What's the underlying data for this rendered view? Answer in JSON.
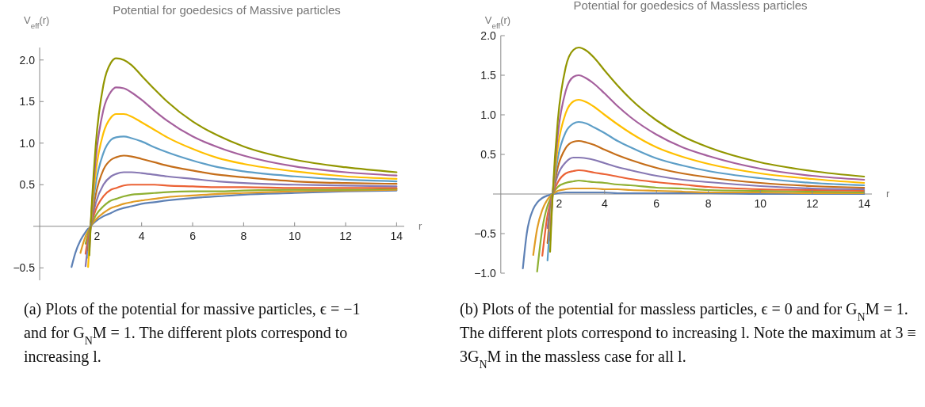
{
  "chart_data": [
    {
      "type": "line",
      "title": "Potential for goedesics of Massive particles",
      "xlabel": "r",
      "ylabel": "V$_{eff}$(r)",
      "x": [
        1.25,
        1.4,
        1.6,
        1.8,
        1.9,
        1.95,
        2,
        2.2,
        2.5,
        2.8,
        3,
        3.3,
        3.6,
        4,
        4.5,
        5,
        6,
        7,
        8,
        10,
        12,
        14
      ],
      "series": [
        {
          "color": "#5e81b5",
          "values": [
            -0.49,
            -0.32,
            -0.17,
            -0.07,
            -0.03,
            -0.02,
            0,
            0.06,
            0.12,
            0.16,
            0.19,
            0.22,
            0.24,
            0.27,
            0.29,
            0.31,
            0.34,
            0.36,
            0.38,
            0.4,
            0.42,
            0.43
          ]
        },
        {
          "color": "#e19c24",
          "values": [
            null,
            null,
            -0.32,
            -0.12,
            -0.06,
            -0.03,
            0,
            0.08,
            0.16,
            0.22,
            0.24,
            0.27,
            0.29,
            0.31,
            0.33,
            0.35,
            0.37,
            0.39,
            0.4,
            0.42,
            0.43,
            0.44
          ]
        },
        {
          "color": "#8fb032",
          "values": [
            null,
            null,
            null,
            -0.21,
            -0.09,
            -0.04,
            0,
            0.13,
            0.24,
            0.31,
            0.33,
            0.36,
            0.38,
            0.39,
            0.4,
            0.41,
            0.42,
            0.42,
            0.43,
            0.44,
            0.44,
            0.45
          ]
        },
        {
          "color": "#eb6235",
          "values": [
            null,
            null,
            null,
            -0.33,
            -0.14,
            -0.07,
            0,
            0.2,
            0.36,
            0.44,
            0.46,
            0.49,
            0.5,
            0.5,
            0.5,
            0.49,
            0.48,
            0.47,
            0.47,
            0.46,
            0.46,
            0.46
          ]
        },
        {
          "color": "#8778b3",
          "values": [
            null,
            null,
            null,
            -0.48,
            -0.21,
            -0.1,
            0,
            0.28,
            0.5,
            0.6,
            0.63,
            0.65,
            0.65,
            0.64,
            0.62,
            0.6,
            0.57,
            0.54,
            0.52,
            0.5,
            0.49,
            0.48
          ]
        },
        {
          "color": "#c56e1a",
          "values": [
            null,
            null,
            null,
            null,
            -0.29,
            -0.13,
            0,
            0.38,
            0.68,
            0.8,
            0.83,
            0.85,
            0.84,
            0.81,
            0.77,
            0.73,
            0.67,
            0.62,
            0.59,
            0.54,
            0.52,
            0.51
          ]
        },
        {
          "color": "#5d9ec7",
          "values": [
            null,
            null,
            null,
            null,
            -0.38,
            -0.18,
            0,
            0.51,
            0.88,
            1.04,
            1.07,
            1.08,
            1.06,
            1.02,
            0.95,
            0.89,
            0.79,
            0.71,
            0.66,
            0.6,
            0.56,
            0.54
          ]
        },
        {
          "color": "#ffbf00",
          "values": [
            null,
            null,
            null,
            null,
            -0.49,
            -0.23,
            0,
            0.65,
            1.12,
            1.31,
            1.35,
            1.35,
            1.32,
            1.25,
            1.16,
            1.07,
            0.93,
            0.82,
            0.75,
            0.66,
            0.6,
            0.57
          ]
        },
        {
          "color": "#a5609d",
          "values": [
            null,
            null,
            null,
            null,
            null,
            -0.29,
            0,
            0.81,
            1.4,
            1.62,
            1.67,
            1.66,
            1.61,
            1.52,
            1.39,
            1.27,
            1.08,
            0.95,
            0.85,
            0.72,
            0.65,
            0.61
          ]
        },
        {
          "color": "#929600",
          "values": [
            null,
            null,
            null,
            null,
            null,
            -0.35,
            0,
            0.98,
            1.7,
            1.97,
            2.02,
            2.0,
            1.94,
            1.81,
            1.65,
            1.5,
            1.26,
            1.09,
            0.96,
            0.8,
            0.71,
            0.65
          ]
        }
      ],
      "xlim": [
        -0.25,
        14.3
      ],
      "ylim": [
        -0.65,
        2.15
      ],
      "xticks": [
        2,
        4,
        6,
        8,
        10,
        12,
        14
      ],
      "yticks": [
        -0.5,
        0.5,
        {
          "value": 1,
          "label": "1.0"
        },
        1.5,
        {
          "value": 2,
          "label": "2.0"
        }
      ],
      "annotations": [
        "(a) Plots of the potential for massive particles, ϵ = −1 and for G$_{N}$M = 1. The different plots correspond to increasing l."
      ]
    },
    {
      "type": "line",
      "title": "Potential for goedesics of Massless particles",
      "xlabel": "r",
      "ylabel": "V$_{eff}$(r)",
      "x": [
        0.85,
        1,
        1.25,
        1.4,
        1.6,
        1.8,
        1.9,
        1.95,
        2,
        2.2,
        2.5,
        2.8,
        3,
        3.3,
        3.6,
        4,
        4.5,
        5,
        6,
        7,
        8,
        10,
        12,
        14
      ],
      "series": [
        {
          "color": "#5e81b5",
          "values": [
            -0.94,
            -0.5,
            -0.19,
            -0.11,
            -0.05,
            -0.02,
            -0.01,
            0,
            0,
            0.01,
            0.02,
            0.02,
            0.02,
            0.02,
            0.02,
            0.02,
            0.01,
            0.01,
            0.01,
            0.01,
            0.01,
            0,
            0,
            0
          ]
        },
        {
          "color": "#e19c24",
          "values": [
            null,
            null,
            -0.77,
            -0.44,
            -0.2,
            -0.07,
            -0.03,
            -0.01,
            0,
            0.04,
            0.06,
            0.07,
            0.07,
            0.07,
            0.07,
            0.06,
            0.06,
            0.05,
            0.04,
            0.03,
            0.02,
            0.02,
            0.01,
            0.01
          ]
        },
        {
          "color": "#8fb032",
          "values": [
            null,
            null,
            null,
            -0.98,
            -0.44,
            -0.15,
            -0.07,
            -0.03,
            0,
            0.09,
            0.14,
            0.16,
            0.17,
            0.16,
            0.15,
            0.14,
            0.12,
            0.11,
            0.08,
            0.07,
            0.05,
            0.04,
            0.03,
            0.02
          ]
        },
        {
          "color": "#eb6235",
          "values": [
            null,
            null,
            null,
            null,
            -0.78,
            -0.27,
            -0.12,
            -0.05,
            0,
            0.15,
            0.26,
            0.29,
            0.3,
            0.29,
            0.27,
            0.25,
            0.22,
            0.19,
            0.15,
            0.12,
            0.09,
            0.06,
            0.05,
            0.04
          ]
        },
        {
          "color": "#8778b3",
          "values": [
            null,
            null,
            null,
            null,
            null,
            -0.43,
            -0.18,
            -0.08,
            0,
            0.24,
            0.4,
            0.46,
            0.46,
            0.45,
            0.43,
            0.39,
            0.34,
            0.3,
            0.23,
            0.18,
            0.15,
            0.1,
            0.07,
            0.06
          ]
        },
        {
          "color": "#c56e1a",
          "values": [
            null,
            null,
            null,
            null,
            null,
            -0.62,
            -0.26,
            -0.12,
            0,
            0.34,
            0.58,
            0.66,
            0.67,
            0.65,
            0.62,
            0.56,
            0.49,
            0.43,
            0.33,
            0.26,
            0.21,
            0.14,
            0.1,
            0.08
          ]
        },
        {
          "color": "#5d9ec7",
          "values": [
            null,
            null,
            null,
            null,
            null,
            -0.84,
            -0.36,
            -0.17,
            0,
            0.46,
            0.78,
            0.89,
            0.91,
            0.89,
            0.84,
            0.77,
            0.67,
            0.59,
            0.45,
            0.36,
            0.29,
            0.2,
            0.14,
            0.11
          ]
        },
        {
          "color": "#ffbf00",
          "values": [
            null,
            null,
            null,
            null,
            null,
            null,
            -0.47,
            -0.22,
            0,
            0.6,
            1.02,
            1.17,
            1.19,
            1.16,
            1.1,
            1.0,
            0.88,
            0.77,
            0.59,
            0.47,
            0.38,
            0.26,
            0.19,
            0.14
          ]
        },
        {
          "color": "#a5609d",
          "values": [
            null,
            null,
            null,
            null,
            null,
            null,
            -0.59,
            -0.27,
            0,
            0.76,
            1.3,
            1.48,
            1.5,
            1.46,
            1.39,
            1.27,
            1.11,
            0.97,
            0.75,
            0.59,
            0.48,
            0.32,
            0.23,
            0.18
          ]
        },
        {
          "color": "#929600",
          "values": [
            null,
            null,
            null,
            null,
            null,
            null,
            -0.73,
            -0.34,
            0,
            0.94,
            1.6,
            1.82,
            1.85,
            1.81,
            1.72,
            1.56,
            1.37,
            1.2,
            0.93,
            0.73,
            0.59,
            0.4,
            0.29,
            0.22
          ]
        }
      ],
      "xlim": [
        -0.3,
        14.3
      ],
      "ylim": [
        -1,
        2
      ],
      "xticks": [
        2,
        4,
        6,
        8,
        10,
        12,
        14
      ],
      "yticks": [
        {
          "value": -1,
          "label": "−1.0"
        },
        -0.5,
        0.5,
        {
          "value": 1,
          "label": "1.0"
        },
        1.5,
        {
          "value": 2,
          "label": "2.0"
        }
      ],
      "annotations": [
        "(b) Plots of the potential for massless particles, ϵ = 0 and for G$_{N}$M = 1. The different plots correspond to increasing l. Note the maximum at 3 ≡ 3G$_{N}$M in the massless case for all l."
      ]
    }
  ]
}
